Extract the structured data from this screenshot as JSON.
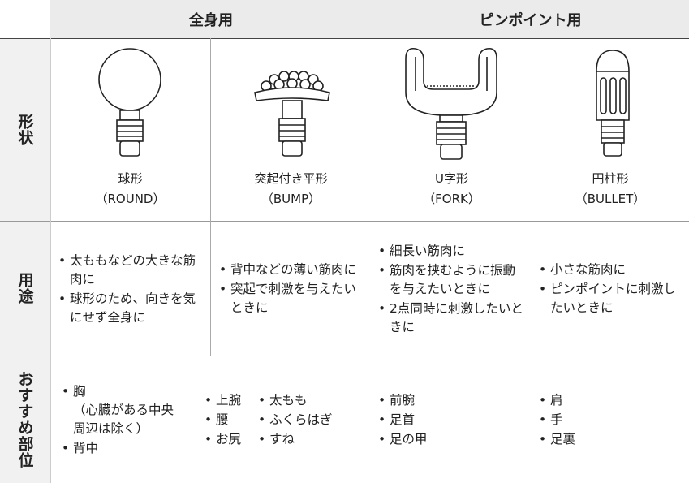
{
  "header": {
    "groups": [
      "全身用",
      "ピンポイント用"
    ]
  },
  "row_labels": [
    "形状",
    "用途",
    "おすすめ部位"
  ],
  "shapes": [
    {
      "name": "球形",
      "sub": "（ROUND）"
    },
    {
      "name": "突起付き平形",
      "sub": "（BUMP）"
    },
    {
      "name": "U字形",
      "sub": "（FORK）"
    },
    {
      "name": "円柱形",
      "sub": "（BULLET）"
    }
  ],
  "uses": [
    [
      "太ももなどの大きな筋肉に",
      "球形のため、向きを気にせず全身に"
    ],
    [
      "背中などの薄い筋肉に",
      "突起で刺激を与えたいときに"
    ],
    [
      "細長い筋肉に",
      "筋肉を挟むように振動を与えたいときに",
      "2点同時に刺激したいときに"
    ],
    [
      "小さな筋肉に",
      "ピンポイントに刺激したいときに"
    ]
  ],
  "recommended": [
    [
      {
        "item": "胸",
        "note": "（心臓がある中央\n周辺は除く）"
      },
      {
        "item": "背中"
      }
    ],
    [
      {
        "item": "上腕"
      },
      {
        "item": "腰"
      },
      {
        "item": "お尻"
      }
    ],
    [
      {
        "item": "太もも"
      },
      {
        "item": "ふくらはぎ"
      },
      {
        "item": "すね"
      }
    ],
    [
      {
        "item": "前腕"
      },
      {
        "item": "足首"
      },
      {
        "item": "足の甲"
      }
    ],
    [
      {
        "item": "肩"
      },
      {
        "item": "手"
      },
      {
        "item": "足裏"
      }
    ]
  ]
}
